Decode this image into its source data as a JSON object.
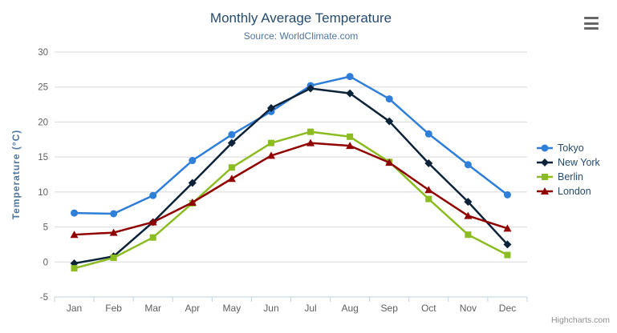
{
  "chart_data": {
    "type": "line",
    "title": "Monthly Average Temperature",
    "subtitle": "Source: WorldClimate.com",
    "categories": [
      "Jan",
      "Feb",
      "Mar",
      "Apr",
      "May",
      "Jun",
      "Jul",
      "Aug",
      "Sep",
      "Oct",
      "Nov",
      "Dec"
    ],
    "xlabel": "",
    "ylabel": "Temperature (°C)",
    "ylim": [
      -5,
      30
    ],
    "y_ticks": [
      -5,
      0,
      5,
      10,
      15,
      20,
      25,
      30
    ],
    "grid": true,
    "legend_position": "right",
    "series": [
      {
        "name": "Tokyo",
        "color": "#2f7ed8",
        "marker": "circle",
        "values": [
          7.0,
          6.9,
          9.5,
          14.5,
          18.2,
          21.5,
          25.2,
          26.5,
          23.3,
          18.3,
          13.9,
          9.6
        ]
      },
      {
        "name": "New York",
        "color": "#0d233a",
        "marker": "diamond",
        "values": [
          -0.2,
          0.8,
          5.7,
          11.3,
          17.0,
          22.0,
          24.8,
          24.1,
          20.1,
          14.1,
          8.6,
          2.5
        ]
      },
      {
        "name": "Berlin",
        "color": "#8bbc21",
        "marker": "square",
        "values": [
          -0.9,
          0.6,
          3.5,
          8.4,
          13.5,
          17.0,
          18.6,
          17.9,
          14.3,
          9.0,
          3.9,
          1.0
        ]
      },
      {
        "name": "London",
        "color": "#910000",
        "marker": "triangle",
        "values": [
          3.9,
          4.2,
          5.7,
          8.5,
          11.9,
          15.2,
          17.0,
          16.6,
          14.2,
          10.3,
          6.6,
          4.8
        ]
      }
    ]
  },
  "credits": "Highcharts.com",
  "icons": {
    "context_menu": "hamburger-menu-icon"
  },
  "colors": {
    "title": "#274b6d",
    "subtitle": "#4d759e",
    "axis_labels": "#606060",
    "axis_title": "#4d759e",
    "grid": "#d8d8d8",
    "axis_line": "#c0d0e0",
    "legend_text": "#274b6d",
    "credits_text": "#909090",
    "menu_icon": "#666666",
    "background": "#ffffff"
  }
}
